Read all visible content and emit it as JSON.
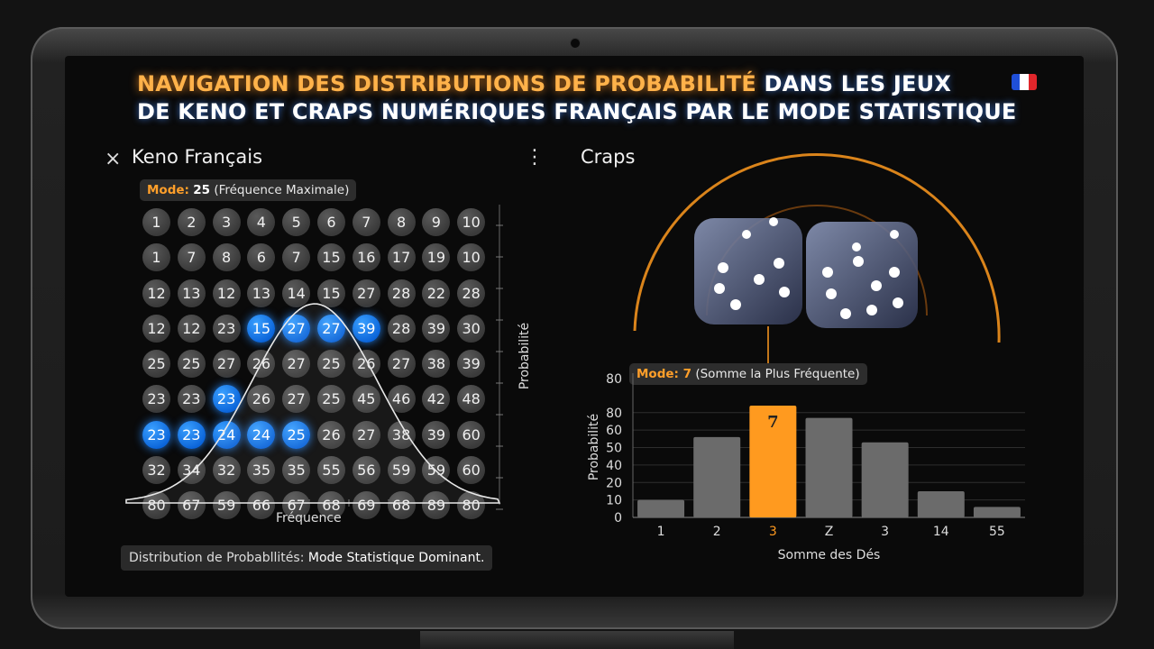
{
  "title": {
    "line1_highlight": "NAVIGATION DES DISTRIBUTIONS DE PROBABILITÉ",
    "line1_rest": " DANS LES JEUX",
    "line2": "DE KENO ET CRAPS NUMÉRIQUES FRANÇAIS PAR LE MODE STATISTIQUE"
  },
  "flag": {
    "colors": [
      "#1f4fd8",
      "#ffffff",
      "#e0262b"
    ]
  },
  "keno": {
    "title": "Keno Français",
    "close_icon": "×",
    "menu_icon": "⋮",
    "tooltip": {
      "mode_label": "Mode:",
      "mode_value": "25",
      "desc": "(Fréquence Maximale)"
    },
    "grid": [
      [
        "1",
        "2",
        "3",
        "4",
        "5",
        "6",
        "7",
        "8",
        "9",
        "10"
      ],
      [
        "1",
        "7",
        "8",
        "6",
        "7",
        "15",
        "16",
        "17",
        "19",
        "10"
      ],
      [
        "12",
        "13",
        "12",
        "13",
        "14",
        "15",
        "27",
        "28",
        "22",
        "28"
      ],
      [
        "12",
        "12",
        "23",
        "15",
        "27",
        "27",
        "39",
        "28",
        "39",
        "30"
      ],
      [
        "25",
        "25",
        "27",
        "26",
        "27",
        "25",
        "26",
        "27",
        "38",
        "39"
      ],
      [
        "23",
        "23",
        "23",
        "26",
        "27",
        "25",
        "45",
        "46",
        "42",
        "48"
      ],
      [
        "23",
        "23",
        "24",
        "24",
        "25",
        "26",
        "27",
        "38",
        "39",
        "60"
      ],
      [
        "32",
        "34",
        "32",
        "35",
        "35",
        "55",
        "56",
        "59",
        "59",
        "60"
      ],
      [
        "80",
        "67",
        "59",
        "66",
        "67",
        "68",
        "69",
        "68",
        "89",
        "80"
      ]
    ],
    "highlighted": [
      [
        3,
        3
      ],
      [
        3,
        4
      ],
      [
        3,
        5
      ],
      [
        3,
        6
      ],
      [
        5,
        2
      ],
      [
        6,
        0
      ],
      [
        6,
        1
      ],
      [
        6,
        2
      ],
      [
        6,
        3
      ],
      [
        6,
        4
      ]
    ],
    "x_label": "Fréquence",
    "y_label": "Probabilité",
    "status": {
      "prefix": "Distribution de Probabllités:",
      "emphasis": "Mode Statistique Dominant."
    }
  },
  "craps": {
    "title": "Craps",
    "tooltip": {
      "mode_label": "Mode:",
      "mode_value": "7",
      "desc": "(Somme la Plus Fréquente)"
    },
    "accent_color": "#ff9a1f"
  },
  "chart_data": {
    "type": "bar",
    "categories": [
      "1",
      "2",
      "3",
      "Z",
      "3",
      "14",
      "55"
    ],
    "values": [
      10,
      46,
      64,
      57,
      43,
      15,
      6
    ],
    "highlight_index": 2,
    "data_labels": {
      "2": "7"
    },
    "title": "",
    "xlabel": "Somme des Dés",
    "ylabel": "Probabilité",
    "y_ticks": [
      "0",
      "10",
      "20",
      "40",
      "50",
      "60",
      "80"
    ],
    "ylim": [
      0,
      80
    ],
    "grid": true
  }
}
